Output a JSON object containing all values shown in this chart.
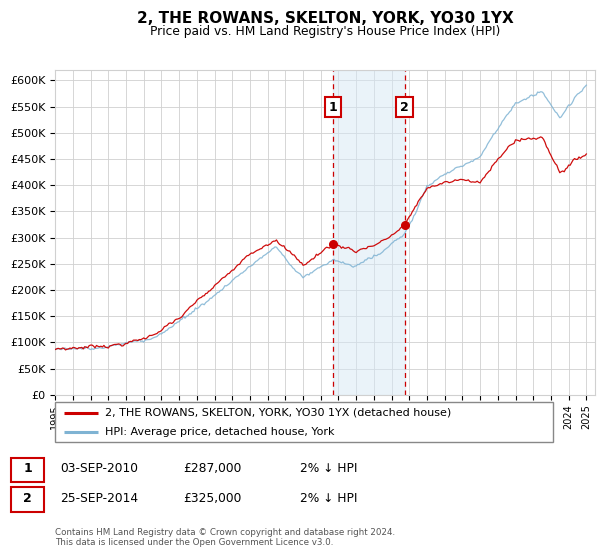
{
  "title": "2, THE ROWANS, SKELTON, YORK, YO30 1YX",
  "subtitle": "Price paid vs. HM Land Registry's House Price Index (HPI)",
  "ylim": [
    0,
    620000
  ],
  "yticks": [
    0,
    50000,
    100000,
    150000,
    200000,
    250000,
    300000,
    350000,
    400000,
    450000,
    500000,
    550000,
    600000
  ],
  "ytick_labels": [
    "£0",
    "£50K",
    "£100K",
    "£150K",
    "£200K",
    "£250K",
    "£300K",
    "£350K",
    "£400K",
    "£450K",
    "£500K",
    "£550K",
    "£600K"
  ],
  "xlim_min": 1995,
  "xlim_max": 2025.5,
  "t1_x": 2010.67,
  "t1_y": 287000,
  "t1_date": "03-SEP-2010",
  "t1_hpi": "2% ↓ HPI",
  "t2_x": 2014.73,
  "t2_y": 325000,
  "t2_date": "25-SEP-2014",
  "t2_hpi": "2% ↓ HPI",
  "line_red": "#cc0000",
  "line_blue": "#7fb3d3",
  "grid_color": "#d0d0d0",
  "shade_color": "#d6e8f5",
  "box_color": "#cc0000",
  "legend_red": "2, THE ROWANS, SKELTON, YORK, YO30 1YX (detached house)",
  "legend_blue": "HPI: Average price, detached house, York",
  "footnote1": "Contains HM Land Registry data © Crown copyright and database right 2024.",
  "footnote2": "This data is licensed under the Open Government Licence v3.0.",
  "bg": "#ffffff"
}
